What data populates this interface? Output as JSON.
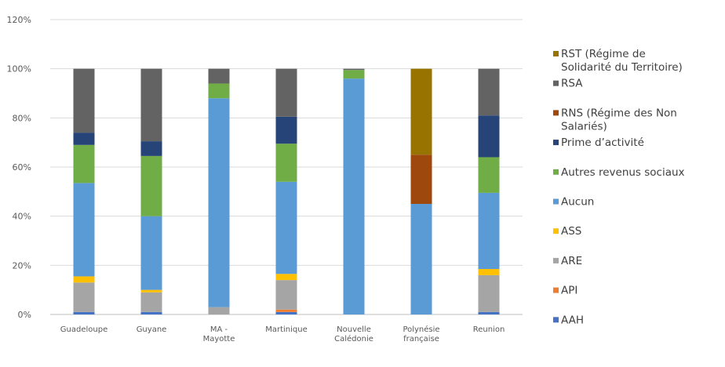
{
  "chart_data": {
    "type": "bar",
    "stacked": true,
    "title": "",
    "xlabel": "",
    "ylabel": "",
    "ylim": [
      0,
      120
    ],
    "yticks": [
      "0%",
      "20%",
      "40%",
      "60%",
      "80%",
      "100%",
      "120%"
    ],
    "grid": true,
    "legend_position": "right",
    "categories": [
      [
        "Guadeloupe"
      ],
      [
        "Guyane"
      ],
      [
        "MA -",
        "Mayotte"
      ],
      [
        "Martinique"
      ],
      [
        "Nouvelle",
        "Calédonie"
      ],
      [
        "Polynésie",
        "française"
      ],
      [
        "Reunion"
      ]
    ],
    "series": [
      {
        "name": "AAH",
        "color": "#4472C4",
        "values": [
          1,
          1,
          0,
          1,
          0,
          0,
          1
        ]
      },
      {
        "name": "API",
        "color": "#ED7D31",
        "values": [
          0,
          0,
          0,
          1,
          0,
          0,
          0
        ]
      },
      {
        "name": "ARE",
        "color": "#A5A5A5",
        "values": [
          12,
          8,
          3,
          12,
          0,
          0,
          15
        ]
      },
      {
        "name": "ASS",
        "color": "#FFC000",
        "values": [
          2.5,
          1,
          0,
          2.5,
          0,
          0,
          2.5
        ]
      },
      {
        "name": "Aucun",
        "color": "#5B9BD5",
        "values": [
          38,
          30,
          85,
          37.5,
          96,
          45,
          31
        ]
      },
      {
        "name": "Autres revenus sociaux",
        "color": "#70AD47",
        "values": [
          15.5,
          24.5,
          6,
          15.5,
          3.5,
          0,
          14.5
        ]
      },
      {
        "name": "Prime d’activité",
        "color": "#264478",
        "values": [
          5,
          6,
          0,
          11,
          0,
          0,
          17
        ]
      },
      {
        "name": "RNS (Régime des Non Salariés)",
        "color": "#9E480E",
        "values": [
          0,
          0,
          0,
          0,
          0,
          20,
          0
        ]
      },
      {
        "name": "RSA",
        "color": "#636363",
        "values": [
          26,
          29.5,
          6,
          19.5,
          0.5,
          0,
          19
        ]
      },
      {
        "name": "RST (Régime de Solidarité du Territoire)",
        "color": "#997300",
        "values": [
          0,
          0,
          0,
          0,
          0,
          35,
          0
        ]
      }
    ],
    "legend_order": [
      [
        "RST (Régime de",
        "Solidarité du Territoire)"
      ],
      [
        "RSA"
      ],
      [
        "RNS (Régime des Non",
        "Salariés)"
      ],
      [
        "Prime d’activité"
      ],
      [
        "Autres revenus sociaux"
      ],
      [
        "Aucun"
      ],
      [
        "ASS"
      ],
      [
        "ARE"
      ],
      [
        "API"
      ],
      [
        "AAH"
      ]
    ]
  }
}
